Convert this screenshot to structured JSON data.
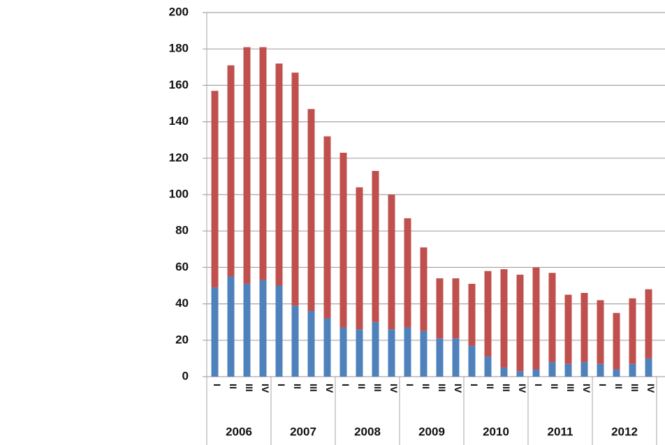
{
  "chart_data": {
    "type": "stacked-bar",
    "categories": [
      "I",
      "II",
      "III",
      "IV",
      "I",
      "II",
      "III",
      "IV",
      "I",
      "II",
      "III",
      "IV",
      "I",
      "II",
      "III",
      "IV",
      "I",
      "II",
      "III",
      "IV",
      "I",
      "II",
      "III",
      "IV",
      "I",
      "II",
      "III",
      "IV"
    ],
    "groups": [
      "2006",
      "2007",
      "2008",
      "2009",
      "2010",
      "2011",
      "2012"
    ],
    "series": [
      {
        "color": "#4f81bd",
        "values": [
          49,
          55,
          51,
          53,
          50,
          39,
          36,
          32,
          27,
          26,
          30,
          26,
          27,
          25,
          21,
          21,
          17,
          11,
          5,
          3,
          4,
          8,
          7,
          8,
          7,
          4,
          7,
          10
        ]
      },
      {
        "color": "#c0504d",
        "values": [
          108,
          116,
          130,
          128,
          122,
          128,
          111,
          100,
          96,
          78,
          83,
          74,
          60,
          46,
          33,
          33,
          34,
          47,
          54,
          53,
          56,
          49,
          38,
          38,
          35,
          31,
          36,
          38
        ]
      }
    ],
    "ylim": [
      0,
      200
    ],
    "yticks": [
      0,
      20,
      40,
      60,
      80,
      100,
      120,
      140,
      160,
      180,
      200
    ],
    "grid": true
  }
}
